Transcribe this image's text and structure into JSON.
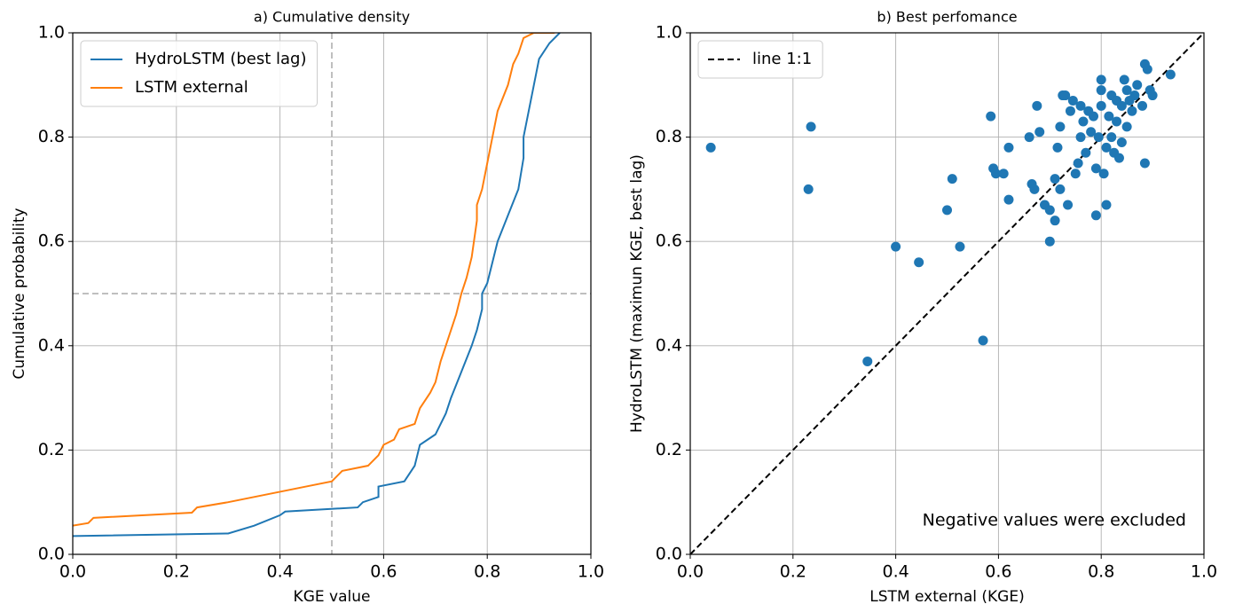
{
  "chart_data": [
    {
      "type": "line",
      "title": "a) Cumulative density",
      "xlabel": "KGE value",
      "ylabel": "Cumulative probability",
      "xlim": [
        0,
        1
      ],
      "ylim": [
        0,
        1
      ],
      "xticks": [
        {
          "value": 0,
          "label": "0.0"
        },
        0.2,
        0.4,
        0.6,
        0.8,
        {
          "value": 1,
          "label": "1.0"
        }
      ],
      "yticks": [
        {
          "value": 0,
          "label": "0.0"
        },
        0.2,
        0.4,
        0.6,
        0.8,
        {
          "value": 1,
          "label": "1.0"
        }
      ],
      "grid": true,
      "legend": "upper left",
      "hlines": [
        0.5
      ],
      "vlines": [
        0.5
      ],
      "series": [
        {
          "name": "HydroLSTM (best lag)",
          "color": "#1f77b4",
          "style": "solid",
          "x": [
            0,
            0.3,
            0.35,
            0.4,
            0.41,
            0.55,
            0.56,
            0.59,
            0.59,
            0.64,
            0.66,
            0.67,
            0.7,
            0.72,
            0.73,
            0.75,
            0.77,
            0.78,
            0.79,
            0.79,
            0.8,
            0.81,
            0.82,
            0.84,
            0.86,
            0.87,
            0.87,
            0.88,
            0.89,
            0.9,
            0.92,
            0.94
          ],
          "values": [
            0.035,
            0.04,
            0.055,
            0.075,
            0.082,
            0.09,
            0.1,
            0.11,
            0.13,
            0.14,
            0.17,
            0.21,
            0.23,
            0.27,
            0.3,
            0.35,
            0.4,
            0.43,
            0.47,
            0.5,
            0.52,
            0.56,
            0.6,
            0.65,
            0.7,
            0.76,
            0.8,
            0.85,
            0.9,
            0.95,
            0.98,
            1.0
          ]
        },
        {
          "name": "LSTM external",
          "color": "#ff7f0e",
          "style": "solid",
          "x": [
            0,
            0.03,
            0.04,
            0.23,
            0.24,
            0.3,
            0.4,
            0.45,
            0.5,
            0.52,
            0.57,
            0.59,
            0.6,
            0.62,
            0.63,
            0.66,
            0.67,
            0.69,
            0.7,
            0.71,
            0.72,
            0.73,
            0.74,
            0.75,
            0.76,
            0.77,
            0.78,
            0.78,
            0.79,
            0.8,
            0.81,
            0.82,
            0.84,
            0.85,
            0.86,
            0.87,
            0.89,
            0.93
          ],
          "values": [
            0.055,
            0.06,
            0.07,
            0.08,
            0.09,
            0.1,
            0.12,
            0.13,
            0.14,
            0.16,
            0.17,
            0.19,
            0.21,
            0.22,
            0.24,
            0.25,
            0.28,
            0.31,
            0.33,
            0.37,
            0.4,
            0.43,
            0.46,
            0.5,
            0.53,
            0.57,
            0.64,
            0.67,
            0.7,
            0.75,
            0.8,
            0.85,
            0.9,
            0.94,
            0.96,
            0.99,
            1.0,
            1.0
          ]
        }
      ]
    },
    {
      "type": "scatter",
      "title": "b) Best perfomance",
      "xlabel": "LSTM external (KGE)",
      "ylabel": "HydroLSTM (maximun KGE, best lag)",
      "annotation": "Negative values were excluded",
      "xlim": [
        0,
        1
      ],
      "ylim": [
        0,
        1
      ],
      "xticks": [
        {
          "value": 0,
          "label": "0.0"
        },
        0.2,
        0.4,
        0.6,
        0.8,
        {
          "value": 1,
          "label": "1.0"
        }
      ],
      "yticks": [
        {
          "value": 0,
          "label": "0.0"
        },
        0.2,
        0.4,
        0.6,
        0.8,
        {
          "value": 1,
          "label": "1.0"
        }
      ],
      "grid": true,
      "legend": "upper left",
      "color": "#1f77b4",
      "x": [
        0.04,
        0.23,
        0.235,
        0.4,
        0.445,
        0.345,
        0.57,
        0.525,
        0.5,
        0.51,
        0.585,
        0.59,
        0.595,
        0.61,
        0.62,
        0.62,
        0.66,
        0.665,
        0.67,
        0.675,
        0.68,
        0.69,
        0.7,
        0.7,
        0.71,
        0.71,
        0.715,
        0.72,
        0.72,
        0.725,
        0.73,
        0.735,
        0.74,
        0.745,
        0.75,
        0.755,
        0.76,
        0.76,
        0.765,
        0.77,
        0.775,
        0.78,
        0.785,
        0.79,
        0.79,
        0.795,
        0.8,
        0.8,
        0.8,
        0.805,
        0.81,
        0.81,
        0.815,
        0.82,
        0.82,
        0.825,
        0.83,
        0.83,
        0.835,
        0.84,
        0.84,
        0.845,
        0.85,
        0.85,
        0.855,
        0.86,
        0.865,
        0.87,
        0.88,
        0.885,
        0.885,
        0.89,
        0.895,
        0.9,
        0.935
      ],
      "values": [
        0.78,
        0.7,
        0.82,
        0.59,
        0.56,
        0.37,
        0.41,
        0.59,
        0.66,
        0.72,
        0.84,
        0.74,
        0.73,
        0.73,
        0.68,
        0.78,
        0.8,
        0.71,
        0.7,
        0.86,
        0.81,
        0.67,
        0.66,
        0.6,
        0.64,
        0.72,
        0.78,
        0.7,
        0.82,
        0.88,
        0.88,
        0.67,
        0.85,
        0.87,
        0.73,
        0.75,
        0.8,
        0.86,
        0.83,
        0.77,
        0.85,
        0.81,
        0.84,
        0.65,
        0.74,
        0.8,
        0.86,
        0.91,
        0.89,
        0.73,
        0.67,
        0.78,
        0.84,
        0.88,
        0.8,
        0.77,
        0.87,
        0.83,
        0.76,
        0.86,
        0.79,
        0.91,
        0.89,
        0.82,
        0.87,
        0.85,
        0.88,
        0.9,
        0.86,
        0.94,
        0.75,
        0.93,
        0.89,
        0.88,
        0.92
      ],
      "series": [
        {
          "name": "line 1:1",
          "color": "#000000",
          "style": "dashed",
          "x": [
            0,
            1
          ],
          "values": [
            0,
            1
          ]
        }
      ]
    }
  ]
}
